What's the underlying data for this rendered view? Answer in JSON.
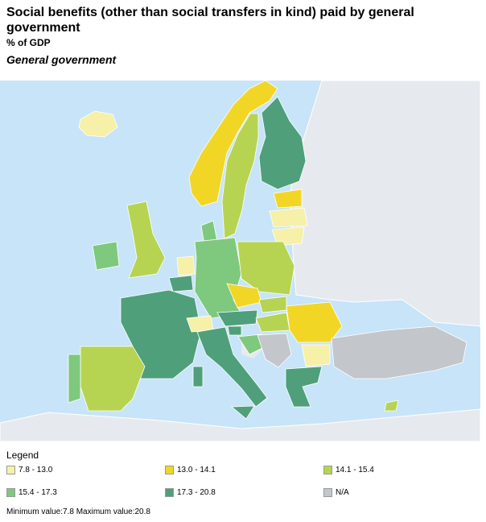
{
  "header": {
    "title": "Social benefits (other than social transfers in kind) paid by general government",
    "unit": "% of GDP",
    "subtitle": "General government"
  },
  "legend": {
    "title": "Legend",
    "items": [
      {
        "label": "7.8 - 13.0",
        "color": "#f6f0a8"
      },
      {
        "label": "13.0 - 14.1",
        "color": "#f1d626"
      },
      {
        "label": "14.1 - 15.4",
        "color": "#b6d452"
      },
      {
        "label": "15.4 - 17.3",
        "color": "#7ec97d"
      },
      {
        "label": "17.3 - 20.8",
        "color": "#4f9f7b"
      },
      {
        "label": "N/A",
        "color": "#c3c6cb"
      }
    ]
  },
  "footer": "Minimum value:7.8 Maximum value:20.8"
}
